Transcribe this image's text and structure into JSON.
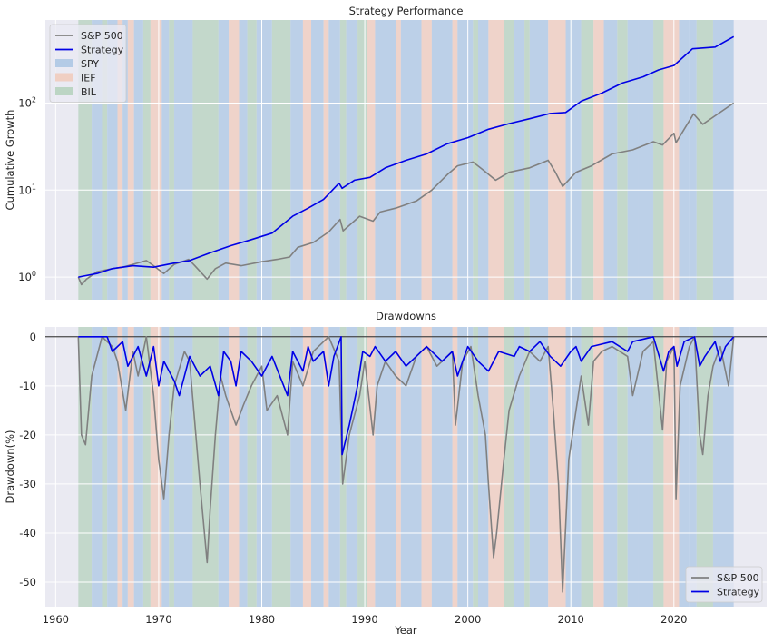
{
  "chart_data": [
    {
      "type": "line",
      "title": "Strategy Performance",
      "xlabel": "",
      "ylabel": "Cumulative Growth",
      "yscale": "log",
      "xlim": [
        1959,
        2029
      ],
      "ylim": [
        0.55,
        900
      ],
      "x_tick_labels_shown": false,
      "y_ticks": [
        1,
        10,
        100
      ],
      "y_tick_labels": [
        "10^0",
        "10^1",
        "10^2"
      ],
      "grid": true,
      "legend_position": "upper left",
      "legend": [
        {
          "label": "S&P 500",
          "kind": "line",
          "color": "#808080"
        },
        {
          "label": "Strategy",
          "kind": "line",
          "color": "#0000e6"
        },
        {
          "label": "SPY",
          "kind": "patch",
          "color": "#b4cbe6"
        },
        {
          "label": "IEF",
          "kind": "patch",
          "color": "#f0cfc3"
        },
        {
          "label": "BIL",
          "kind": "patch",
          "color": "#bcd5c4"
        }
      ],
      "series": [
        {
          "name": "S&P 500",
          "color": "#808080",
          "x": [
            1962.2,
            1962.5,
            1963.0,
            1964.0,
            1965.5,
            1966.5,
            1967.5,
            1968.8,
            1969.5,
            1970.5,
            1971.5,
            1972.9,
            1973.5,
            1974.7,
            1975.5,
            1976.5,
            1978.0,
            1980.0,
            1981.5,
            1982.7,
            1983.5,
            1985.0,
            1986.5,
            1987.6,
            1987.9,
            1989.5,
            1990.8,
            1991.5,
            1993.0,
            1995.0,
            1996.5,
            1998.0,
            1999.0,
            2000.5,
            2001.5,
            2002.7,
            2004.0,
            2006.0,
            2007.8,
            2008.5,
            2009.2,
            2010.5,
            2012.0,
            2014.0,
            2016.0,
            2018.0,
            2018.9,
            2020.0,
            2020.2,
            2021.9,
            2022.8,
            2023.5,
            2025.8
          ],
          "values": [
            1.0,
            0.82,
            0.95,
            1.15,
            1.25,
            1.3,
            1.4,
            1.55,
            1.35,
            1.1,
            1.4,
            1.6,
            1.35,
            0.95,
            1.25,
            1.45,
            1.35,
            1.5,
            1.6,
            1.7,
            2.2,
            2.5,
            3.3,
            4.6,
            3.4,
            5.0,
            4.4,
            5.6,
            6.2,
            7.5,
            10,
            15,
            19,
            21,
            17,
            13,
            16,
            18,
            22,
            16,
            11,
            16,
            19,
            26,
            29,
            36,
            33,
            45,
            35,
            75,
            57,
            65,
            100
          ]
        },
        {
          "name": "Strategy",
          "color": "#0000e6",
          "x": [
            1962.2,
            1964.0,
            1965.5,
            1967.5,
            1969.5,
            1971.5,
            1973.0,
            1975.0,
            1977.0,
            1979.0,
            1981.0,
            1983.0,
            1984.5,
            1986.0,
            1987.5,
            1987.8,
            1989.0,
            1990.5,
            1992.0,
            1994.0,
            1996.0,
            1998.0,
            2000.0,
            2002.0,
            2004.0,
            2006.0,
            2008.0,
            2009.5,
            2011.0,
            2013.0,
            2015.0,
            2017.0,
            2018.5,
            2020.0,
            2021.8,
            2024.0,
            2025.8
          ],
          "values": [
            1.0,
            1.1,
            1.25,
            1.35,
            1.3,
            1.45,
            1.55,
            1.9,
            2.3,
            2.7,
            3.2,
            5.0,
            6.2,
            7.8,
            12,
            10.5,
            13,
            14,
            18,
            22,
            26,
            34,
            40,
            50,
            58,
            66,
            76,
            78,
            105,
            130,
            170,
            200,
            240,
            270,
            420,
            440,
            580
          ]
        }
      ]
    },
    {
      "type": "line",
      "title": "Drawdowns",
      "xlabel": "Year",
      "ylabel": "Drawdown(%)",
      "xlim": [
        1959,
        2029
      ],
      "ylim": [
        -55,
        2
      ],
      "x_ticks": [
        1960,
        1970,
        1980,
        1990,
        2000,
        2010,
        2020
      ],
      "y_ticks": [
        0,
        -10,
        -20,
        -30,
        -40,
        -50
      ],
      "grid": true,
      "zero_line": true,
      "legend_position": "lower right",
      "legend": [
        {
          "label": "S&P 500",
          "kind": "line",
          "color": "#808080"
        },
        {
          "label": "Strategy",
          "kind": "line",
          "color": "#0000e6"
        }
      ],
      "series": [
        {
          "name": "S&P 500",
          "color": "#808080",
          "x": [
            1962.2,
            1962.5,
            1962.9,
            1963.5,
            1964.5,
            1965.5,
            1966.0,
            1966.8,
            1967.5,
            1968.0,
            1968.8,
            1969.5,
            1970.0,
            1970.5,
            1971.0,
            1971.5,
            1972.5,
            1973.0,
            1974.0,
            1974.7,
            1975.0,
            1975.5,
            1976.0,
            1976.5,
            1977.5,
            1978.2,
            1979.0,
            1980.0,
            1980.5,
            1981.5,
            1982.5,
            1983.0,
            1984.0,
            1985.0,
            1986.5,
            1987.5,
            1987.85,
            1988.5,
            1989.5,
            1990.0,
            1990.8,
            1991.2,
            1992.0,
            1993.0,
            1994.0,
            1995.0,
            1996.0,
            1997.0,
            1998.5,
            1998.8,
            1999.5,
            2000.3,
            2001.0,
            2001.7,
            2002.0,
            2002.5,
            2002.8,
            2003.5,
            2004.0,
            2005.0,
            2006.0,
            2007.0,
            2007.8,
            2008.3,
            2008.8,
            2009.2,
            2009.8,
            2010.5,
            2011.0,
            2011.7,
            2012.2,
            2013.0,
            2014.0,
            2015.5,
            2016.0,
            2017.0,
            2018.0,
            2018.9,
            2019.3,
            2020.0,
            2020.2,
            2020.6,
            2021.5,
            2022.0,
            2022.5,
            2022.8,
            2023.3,
            2023.8,
            2024.5,
            2025.3,
            2025.8
          ],
          "values": [
            0,
            -20,
            -22,
            -8,
            0,
            -2,
            -5,
            -15,
            -3,
            -8,
            0,
            -12,
            -25,
            -33,
            -20,
            -10,
            -3,
            -5,
            -30,
            -46,
            -35,
            -20,
            -8,
            -12,
            -18,
            -14,
            -10,
            -6,
            -15,
            -12,
            -20,
            -5,
            -10,
            -3,
            0,
            -5,
            -30,
            -20,
            -12,
            -5,
            -20,
            -10,
            -5,
            -8,
            -10,
            -4,
            -2,
            -6,
            -3,
            -18,
            -5,
            -2,
            -12,
            -20,
            -30,
            -45,
            -40,
            -25,
            -15,
            -8,
            -3,
            -5,
            -2,
            -15,
            -30,
            -52,
            -25,
            -15,
            -8,
            -18,
            -5,
            -3,
            -2,
            -4,
            -12,
            -3,
            -1,
            -19,
            -5,
            -2,
            -33,
            -10,
            -2,
            0,
            -20,
            -24,
            -12,
            -6,
            -2,
            -10,
            0
          ]
        },
        {
          "name": "Strategy",
          "color": "#0000e6",
          "x": [
            1962.2,
            1965.0,
            1965.5,
            1966.5,
            1967.0,
            1968.0,
            1968.8,
            1969.5,
            1970.0,
            1970.5,
            1971.5,
            1972.0,
            1973.0,
            1974.0,
            1975.0,
            1975.8,
            1976.3,
            1977.0,
            1977.5,
            1978.0,
            1979.0,
            1980.0,
            1981.0,
            1982.5,
            1983.0,
            1984.0,
            1984.5,
            1985.0,
            1986.0,
            1986.5,
            1987.0,
            1987.7,
            1987.8,
            1988.5,
            1989.3,
            1989.8,
            1990.5,
            1991.0,
            1992.0,
            1993.0,
            1994.0,
            1996.0,
            1997.5,
            1998.5,
            1999.0,
            2000.0,
            2001.0,
            2002.0,
            2003.0,
            2004.5,
            2005.0,
            2006.0,
            2007.0,
            2008.0,
            2009.0,
            2010.0,
            2010.5,
            2011.0,
            2012.0,
            2014.0,
            2015.5,
            2016.0,
            2018.0,
            2019.0,
            2019.5,
            2020.0,
            2020.3,
            2021.0,
            2022.0,
            2022.5,
            2023.0,
            2024.0,
            2024.5,
            2025.0,
            2025.8
          ],
          "values": [
            0,
            0,
            -3,
            -1,
            -6,
            -2,
            -8,
            -2,
            -10,
            -5,
            -9,
            -12,
            -4,
            -8,
            -6,
            -12,
            -3,
            -5,
            -10,
            -3,
            -5,
            -8,
            -4,
            -12,
            -3,
            -7,
            -2,
            -5,
            -3,
            -10,
            -4,
            0,
            -24,
            -18,
            -10,
            -3,
            -4,
            -2,
            -5,
            -3,
            -6,
            -2,
            -5,
            -3,
            -8,
            -2,
            -5,
            -7,
            -3,
            -4,
            -2,
            -3,
            -1,
            -4,
            -6,
            -3,
            -2,
            -5,
            -2,
            -1,
            -3,
            -1,
            0,
            -7,
            -3,
            -2,
            -6,
            -1,
            0,
            -6,
            -4,
            -1,
            -5,
            -2,
            0
          ]
        }
      ]
    }
  ],
  "regime_bands": {
    "note_colors": {
      "SPY": "#b4cbe6",
      "IEF": "#f0cfc3",
      "BIL": "#bcd5c4"
    },
    "bands": [
      [
        1962.2,
        1963.5,
        "BIL"
      ],
      [
        1963.5,
        1964.5,
        "SPY"
      ],
      [
        1964.5,
        1965.0,
        "BIL"
      ],
      [
        1965.0,
        1966.0,
        "SPY"
      ],
      [
        1966.0,
        1966.5,
        "IEF"
      ],
      [
        1966.5,
        1967.0,
        "SPY"
      ],
      [
        1967.0,
        1967.6,
        "IEF"
      ],
      [
        1967.6,
        1968.5,
        "SPY"
      ],
      [
        1968.5,
        1969.2,
        "BIL"
      ],
      [
        1969.2,
        1970.3,
        "IEF"
      ],
      [
        1970.3,
        1971.0,
        "SPY"
      ],
      [
        1971.0,
        1971.5,
        "BIL"
      ],
      [
        1971.5,
        1972.2,
        "SPY"
      ],
      [
        1972.2,
        1973.3,
        "SPY"
      ],
      [
        1973.3,
        1975.8,
        "BIL"
      ],
      [
        1975.8,
        1976.8,
        "SPY"
      ],
      [
        1976.8,
        1977.8,
        "IEF"
      ],
      [
        1977.8,
        1978.6,
        "SPY"
      ],
      [
        1978.6,
        1979.5,
        "BIL"
      ],
      [
        1979.5,
        1980.0,
        "SPY"
      ],
      [
        1980.0,
        1981.0,
        "SPY"
      ],
      [
        1981.0,
        1982.8,
        "BIL"
      ],
      [
        1982.8,
        1984.0,
        "SPY"
      ],
      [
        1984.0,
        1984.8,
        "IEF"
      ],
      [
        1984.8,
        1986.0,
        "SPY"
      ],
      [
        1986.0,
        1986.5,
        "IEF"
      ],
      [
        1986.5,
        1987.6,
        "SPY"
      ],
      [
        1987.6,
        1988.2,
        "BIL"
      ],
      [
        1988.2,
        1989.3,
        "SPY"
      ],
      [
        1989.3,
        1990.2,
        "BIL"
      ],
      [
        1990.2,
        1991.0,
        "IEF"
      ],
      [
        1991.0,
        1993.0,
        "SPY"
      ],
      [
        1993.0,
        1993.5,
        "IEF"
      ],
      [
        1993.5,
        1995.5,
        "SPY"
      ],
      [
        1995.5,
        1996.5,
        "IEF"
      ],
      [
        1996.5,
        1998.5,
        "SPY"
      ],
      [
        1998.5,
        1999.0,
        "IEF"
      ],
      [
        1999.0,
        2000.5,
        "SPY"
      ],
      [
        2000.5,
        2001.0,
        "BIL"
      ],
      [
        2001.0,
        2002.0,
        "SPY"
      ],
      [
        2002.0,
        2003.5,
        "IEF"
      ],
      [
        2003.5,
        2004.5,
        "BIL"
      ],
      [
        2004.5,
        2005.5,
        "SPY"
      ],
      [
        2005.5,
        2006.0,
        "BIL"
      ],
      [
        2006.0,
        2007.8,
        "SPY"
      ],
      [
        2007.8,
        2009.5,
        "IEF"
      ],
      [
        2009.5,
        2011.0,
        "SPY"
      ],
      [
        2011.0,
        2012.2,
        "BIL"
      ],
      [
        2012.2,
        2013.2,
        "IEF"
      ],
      [
        2013.2,
        2014.5,
        "SPY"
      ],
      [
        2014.5,
        2015.5,
        "BIL"
      ],
      [
        2015.5,
        2016.5,
        "SPY"
      ],
      [
        2016.5,
        2018.0,
        "SPY"
      ],
      [
        2018.0,
        2019.0,
        "BIL"
      ],
      [
        2019.0,
        2019.8,
        "IEF"
      ],
      [
        2019.8,
        2020.5,
        "IEF"
      ],
      [
        2020.5,
        2021.5,
        "SPY"
      ],
      [
        2021.5,
        2022.2,
        "SPY"
      ],
      [
        2022.2,
        2023.8,
        "BIL"
      ],
      [
        2023.8,
        2025.8,
        "SPY"
      ]
    ]
  }
}
